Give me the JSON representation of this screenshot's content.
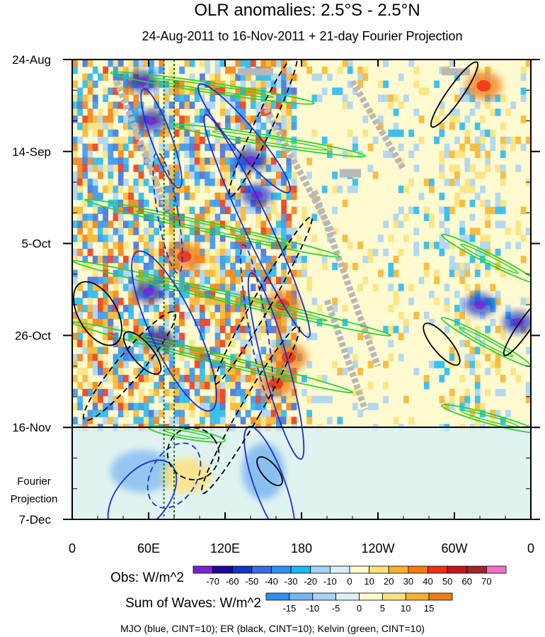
{
  "chart_data": {
    "type": "heatmap",
    "title": "OLR anomalies: 2.5°S - 2.5°N",
    "subtitle": "24-Aug-2011 to 16-Nov-2011 + 21-day Fourier Projection",
    "x_ticks": [
      "0",
      "60E",
      "120E",
      "180",
      "120W",
      "60W",
      "0"
    ],
    "x_tick_values": [
      0,
      60,
      120,
      180,
      240,
      300,
      360
    ],
    "y_ticks": [
      "24-Aug",
      "14-Sep",
      "5-Oct",
      "26-Oct",
      "16-Nov",
      "7-Dec"
    ],
    "y_tick_days": [
      0,
      21,
      42,
      63,
      84,
      105
    ],
    "projection_label": [
      "Fourier",
      "Projection"
    ],
    "projection_start_day": 84,
    "dashed_markers_lon": [
      72,
      80
    ],
    "obs_colorbar": {
      "label": "Obs: W/m^2",
      "ticks": [
        "-70",
        "-60",
        "-50",
        "-40",
        "-30",
        "-20",
        "-10",
        "0",
        "10",
        "20",
        "30",
        "40",
        "50",
        "60",
        "70"
      ],
      "colors": [
        "#7a22d8",
        "#1a0a9a",
        "#1236c8",
        "#3a6be0",
        "#2e8ff0",
        "#1cb6f2",
        "#a6d2f5",
        "#d8f1f8",
        "#fffad0",
        "#fce17a",
        "#f7b12a",
        "#f27d12",
        "#ee2f14",
        "#c8141a",
        "#a0242a",
        "#f56fc4"
      ]
    },
    "waves_colorbar": {
      "label": "Sum of Waves: W/m^2",
      "ticks": [
        "-15",
        "-10",
        "-5",
        "0",
        "5",
        "10",
        "15"
      ],
      "colors": [
        "#2e8ff0",
        "#74b4f2",
        "#a6d2f5",
        "#d8f1f8",
        "#fffad0",
        "#fce17a",
        "#f7b12a",
        "#f27d12"
      ]
    },
    "footnote": "MJO (blue, CINT=10); ER (black, CINT=10); Kelvin (green, CINT=10)",
    "wave_colors": {
      "mjo": "#1a2fd6",
      "er": "#000000",
      "kelvin": "#2ad42a"
    },
    "features": {
      "enhanced_convection_cores": [
        {
          "lon": 55,
          "day": 5
        },
        {
          "lon": 62,
          "day": 14
        },
        {
          "lon": 140,
          "day": 23
        },
        {
          "lon": 145,
          "day": 31
        },
        {
          "lon": 60,
          "day": 53
        },
        {
          "lon": 68,
          "day": 64
        },
        {
          "lon": 320,
          "day": 56
        },
        {
          "lon": 350,
          "day": 60
        }
      ],
      "suppressed_convection_cores": [
        {
          "lon": 88,
          "day": 45
        },
        {
          "lon": 165,
          "day": 56
        },
        {
          "lon": 170,
          "day": 68
        },
        {
          "lon": 160,
          "day": 74
        },
        {
          "lon": 323,
          "day": 6
        }
      ],
      "kelvin_waves": [
        {
          "lon_start": 30,
          "day_start": 3,
          "lon_end": 190,
          "day_end": 10
        },
        {
          "lon_start": 80,
          "day_start": 15,
          "lon_end": 230,
          "day_end": 22
        },
        {
          "lon_start": 10,
          "day_start": 32,
          "lon_end": 210,
          "day_end": 45
        },
        {
          "lon_start": 0,
          "day_start": 46,
          "lon_end": 250,
          "day_end": 63
        },
        {
          "lon_start": 0,
          "day_start": 60,
          "lon_end": 220,
          "day_end": 76
        },
        {
          "lon_start": 60,
          "day_start": 84,
          "lon_end": 120,
          "day_end": 87
        },
        {
          "lon_start": 290,
          "day_start": 40,
          "lon_end": 365,
          "day_end": 51
        },
        {
          "lon_start": 290,
          "day_start": 59,
          "lon_end": 360,
          "day_end": 70
        },
        {
          "lon_start": 290,
          "day_start": 79,
          "lon_end": 365,
          "day_end": 85
        }
      ]
    }
  }
}
